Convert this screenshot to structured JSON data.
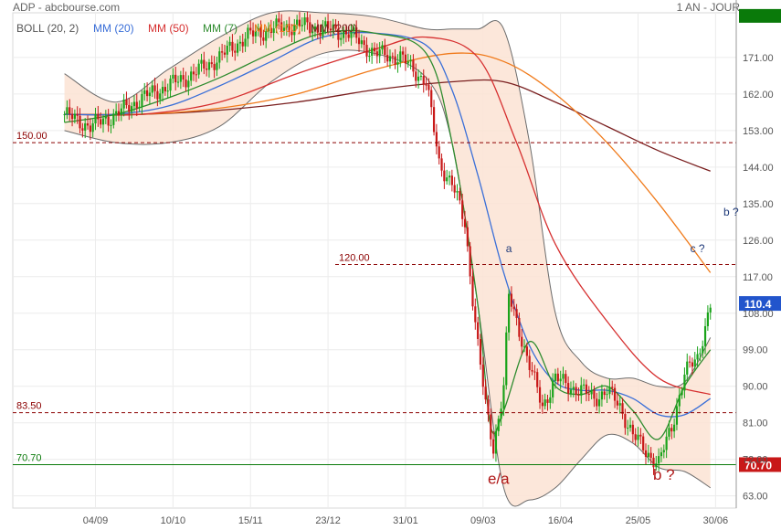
{
  "header": {
    "source": "ADP - abcbourse.com",
    "period": "1 AN - JOUR"
  },
  "chart_data": {
    "type": "line",
    "ylim": [
      60,
      182
    ],
    "yticks": [
      63,
      72,
      81,
      90,
      99,
      108,
      117,
      126,
      135,
      144,
      153,
      162,
      171
    ],
    "ytick_labels": [
      "63.00",
      "72.00",
      "81.00",
      "90.00",
      "99.00",
      "108.00",
      "117.00",
      "126.00",
      "135.00",
      "144.00",
      "153.00",
      "162.00",
      "171.00"
    ],
    "xticks": [
      "04/09",
      "10/10",
      "15/11",
      "23/12",
      "31/01",
      "09/03",
      "16/04",
      "25/05",
      "30/06"
    ],
    "indicators": [
      {
        "label": "BOLL (20, 2)",
        "color": "#555555"
      },
      {
        "label": "MM (20)",
        "color": "#3a6fd8"
      },
      {
        "label": "MM (50)",
        "color": "#d62f2f"
      },
      {
        "label": "MM (7)",
        "color": "#2e8b2e"
      },
      {
        "label": "MM (100)",
        "color": "#f07a1a"
      },
      {
        "label": "MM (200)",
        "color": "#7a1f1f"
      }
    ],
    "series": [
      {
        "name": "MM (200)",
        "color": "#7a1f1f",
        "x": [
          0,
          30,
          60,
          90,
          120,
          150,
          170,
          190,
          210,
          230,
          250
        ],
        "values": [
          157,
          157,
          158,
          160,
          163,
          165,
          165,
          160,
          154,
          148,
          143
        ]
      },
      {
        "name": "MM (100)",
        "color": "#f07a1a",
        "x": [
          0,
          30,
          60,
          90,
          120,
          150,
          170,
          190,
          210,
          230,
          250
        ],
        "values": [
          157,
          157,
          158.5,
          162,
          168,
          172,
          170,
          162,
          150,
          135,
          118
        ]
      },
      {
        "name": "MM (50)",
        "color": "#d62f2f",
        "x": [
          0,
          30,
          60,
          90,
          120,
          140,
          160,
          175,
          190,
          210,
          230,
          250
        ],
        "values": [
          157,
          157,
          160,
          167,
          173,
          176,
          171,
          150,
          125,
          106,
          92,
          88
        ]
      },
      {
        "name": "MM (20)",
        "color": "#3a6fd8",
        "x": [
          0,
          20,
          40,
          60,
          80,
          100,
          120,
          140,
          150,
          160,
          170,
          180,
          190,
          200,
          210,
          220,
          230,
          240,
          250
        ],
        "values": [
          157,
          157,
          159,
          164,
          170,
          176,
          177,
          174,
          163,
          142,
          118,
          100,
          91,
          89,
          89,
          87,
          83,
          83,
          87
        ]
      },
      {
        "name": "MM (7)",
        "color": "#2e8b2e",
        "x": [
          0,
          20,
          40,
          60,
          80,
          100,
          120,
          140,
          150,
          160,
          165,
          170,
          180,
          190,
          200,
          210,
          220,
          230,
          240,
          250
        ],
        "values": [
          155,
          157,
          161,
          166,
          172,
          177,
          177,
          172,
          150,
          110,
          80,
          84,
          101,
          90,
          88,
          90,
          84,
          77,
          90,
          99
        ]
      }
    ],
    "bollinger": {
      "upper": {
        "x": [
          0,
          20,
          40,
          60,
          80,
          100,
          120,
          140,
          150,
          160,
          170,
          180,
          190,
          200,
          210,
          220,
          230,
          240,
          250
        ],
        "values": [
          167,
          160,
          168,
          176,
          182,
          182,
          181,
          178,
          178,
          178,
          178,
          150,
          108,
          96,
          92,
          92,
          90,
          91,
          102
        ]
      },
      "lower": {
        "x": [
          0,
          20,
          40,
          60,
          80,
          100,
          120,
          140,
          150,
          160,
          170,
          180,
          190,
          200,
          210,
          220,
          230,
          240,
          250
        ],
        "values": [
          153,
          150,
          150,
          154,
          165,
          172,
          172,
          166,
          150,
          110,
          65,
          62,
          65,
          72,
          78,
          76,
          70,
          69,
          65
        ]
      }
    },
    "price_path": {
      "x": [
        0,
        10,
        20,
        30,
        40,
        50,
        60,
        70,
        80,
        90,
        100,
        110,
        120,
        130,
        135,
        140,
        145,
        150,
        155,
        160,
        163,
        166,
        170,
        172,
        176,
        180,
        185,
        190,
        195,
        200,
        205,
        210,
        215,
        220,
        225,
        230,
        235,
        240,
        245,
        250
      ],
      "values": [
        157,
        154,
        157,
        161,
        164,
        167,
        171,
        176,
        178,
        179,
        178,
        177,
        172,
        171,
        168,
        165,
        145,
        140,
        130,
        100,
        85,
        75,
        90,
        112,
        104,
        95,
        85,
        92,
        90,
        89,
        87,
        89,
        85,
        78,
        74,
        71,
        80,
        93,
        97,
        110
      ]
    },
    "hlines": [
      {
        "label": "150.00",
        "value": 150,
        "color": "#8b0000",
        "style": "dashed"
      },
      {
        "label": "120.00",
        "value": 120,
        "color": "#8b0000",
        "style": "dashed"
      },
      {
        "label": "83.50",
        "value": 83.5,
        "color": "#8b0000",
        "style": "dashed"
      },
      {
        "label": "70.70",
        "value": 70.7,
        "color": "#0a7a0a",
        "style": "solid"
      }
    ],
    "annotations": [
      {
        "text": "a",
        "x": 172,
        "y": 123
      },
      {
        "text": "e/a",
        "x": 168,
        "y": 66
      },
      {
        "text": "b ?",
        "x": 232,
        "y": 67
      },
      {
        "text": "c ?",
        "x": 245,
        "y": 123
      },
      {
        "text": "b ?",
        "x": 258,
        "y": 132
      }
    ],
    "last_price": {
      "label": "110.4",
      "value": 110.4,
      "color": "#2255cc"
    },
    "support_tag": {
      "label": "70.70",
      "value": 70.7,
      "color": "#c81818"
    },
    "top_tag": {
      "value": 180,
      "color": "#0a7a0a"
    }
  }
}
